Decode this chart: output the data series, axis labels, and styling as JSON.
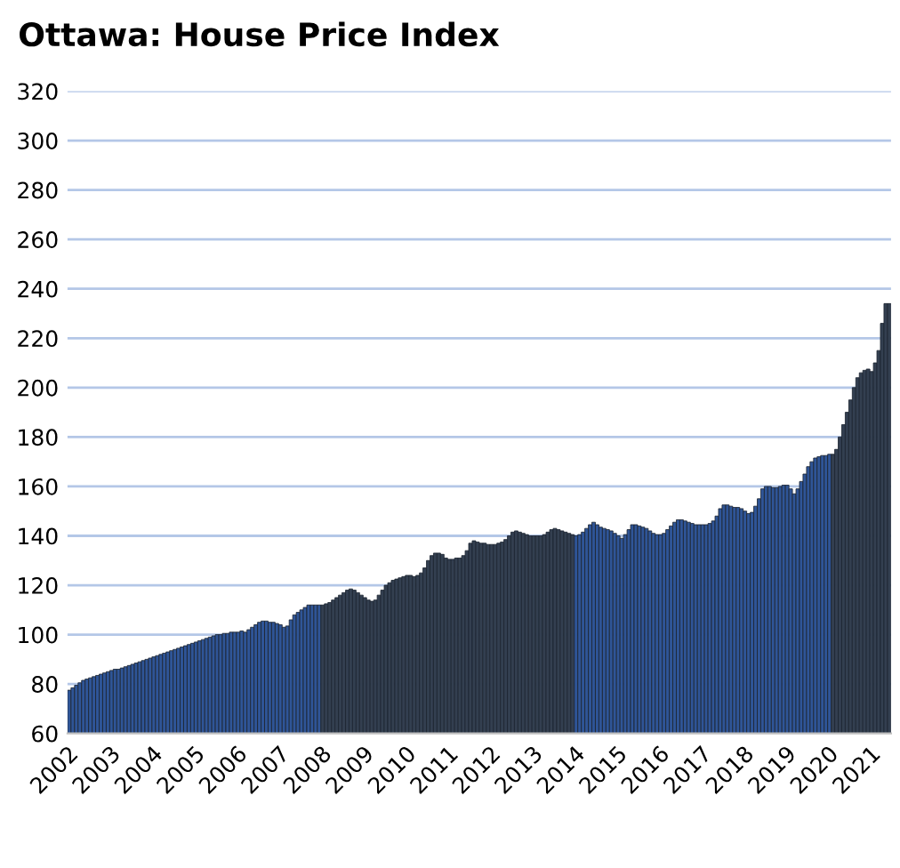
{
  "chart_data": {
    "type": "bar",
    "title": "Ottawa: House Price Index",
    "categories": [
      "2002",
      null,
      null,
      null,
      null,
      null,
      null,
      null,
      null,
      null,
      null,
      null,
      "2003",
      null,
      null,
      null,
      null,
      null,
      null,
      null,
      null,
      null,
      null,
      null,
      "2004",
      null,
      null,
      null,
      null,
      null,
      null,
      null,
      null,
      null,
      null,
      null,
      "2005",
      null,
      null,
      null,
      null,
      null,
      null,
      null,
      null,
      null,
      null,
      null,
      "2006",
      null,
      null,
      null,
      null,
      null,
      null,
      null,
      null,
      null,
      null,
      null,
      "2007",
      null,
      null,
      null,
      null,
      null,
      null,
      null,
      null,
      null,
      null,
      null,
      "2008",
      null,
      null,
      null,
      null,
      null,
      null,
      null,
      null,
      null,
      null,
      null,
      "2009",
      null,
      null,
      null,
      null,
      null,
      null,
      null,
      null,
      null,
      null,
      null,
      "2010",
      null,
      null,
      null,
      null,
      null,
      null,
      null,
      null,
      null,
      null,
      null,
      "2011",
      null,
      null,
      null,
      null,
      null,
      null,
      null,
      null,
      null,
      null,
      null,
      "2012",
      null,
      null,
      null,
      null,
      null,
      null,
      null,
      null,
      null,
      null,
      null,
      "2013",
      null,
      null,
      null,
      null,
      null,
      null,
      null,
      null,
      null,
      null,
      null,
      "2014",
      null,
      null,
      null,
      null,
      null,
      null,
      null,
      null,
      null,
      null,
      null,
      "2015",
      null,
      null,
      null,
      null,
      null,
      null,
      null,
      null,
      null,
      null,
      null,
      "2016",
      null,
      null,
      null,
      null,
      null,
      null,
      null,
      null,
      null,
      null,
      null,
      "2017",
      null,
      null,
      null,
      null,
      null,
      null,
      null,
      null,
      null,
      null,
      null,
      "2018",
      null,
      null,
      null,
      null,
      null,
      null,
      null,
      null,
      null,
      null,
      null,
      "2019",
      null,
      null,
      null,
      null,
      null,
      null,
      null,
      null,
      null,
      null,
      null,
      "2020",
      null,
      null,
      null,
      null,
      null,
      null,
      null,
      null,
      null,
      null,
      null,
      "2021",
      null,
      null,
      null,
      null,
      null
    ],
    "values": [
      77.5,
      78.5,
      79.5,
      80.5,
      81.5,
      82,
      82.5,
      83,
      83.5,
      84,
      84.5,
      85,
      85.5,
      86,
      86,
      86.5,
      87,
      87.5,
      88,
      88.5,
      89,
      89.5,
      90,
      90.5,
      91,
      91.5,
      92,
      92.5,
      93,
      93.5,
      94,
      94.5,
      95,
      95.5,
      96,
      96.5,
      97,
      97.5,
      98,
      98.5,
      99,
      99.5,
      100,
      100,
      100.5,
      100.5,
      101,
      101,
      101,
      101.5,
      101,
      102,
      103,
      104,
      105,
      105.5,
      105.5,
      105,
      105,
      104.5,
      104,
      103,
      103.5,
      106,
      108,
      109,
      110,
      111,
      112,
      112,
      112,
      112,
      112,
      112.5,
      113,
      114,
      115,
      116,
      117,
      118,
      118.5,
      118,
      117,
      116,
      115,
      114,
      113.5,
      114,
      116,
      118,
      120,
      121,
      122,
      122.5,
      123,
      123.5,
      124,
      124,
      123.5,
      124,
      125,
      127,
      130,
      132,
      133,
      133,
      132.5,
      131,
      130.5,
      130.5,
      131,
      131,
      132,
      134,
      137,
      138,
      137.5,
      137,
      137,
      136.5,
      136.5,
      136.5,
      137,
      137.5,
      138.5,
      140,
      141.5,
      142,
      141.5,
      141,
      140.5,
      140,
      140,
      140,
      140,
      140.5,
      141.5,
      142.5,
      143,
      142.5,
      142,
      141.5,
      141,
      140.5,
      140,
      140.5,
      141.5,
      143,
      144.5,
      145.5,
      144.5,
      143.5,
      143,
      142.5,
      142,
      141,
      140,
      139,
      140.5,
      142.5,
      144.5,
      144.5,
      144,
      143.5,
      143,
      142,
      141,
      140.5,
      140.5,
      141,
      142.5,
      144,
      145.5,
      146.5,
      146.5,
      146,
      145.5,
      145,
      144.5,
      144.5,
      144.5,
      144.5,
      145,
      146,
      148,
      151,
      152.5,
      152.5,
      152,
      151.5,
      151.5,
      151,
      150,
      149,
      149.5,
      152,
      155,
      159,
      160,
      160,
      159.5,
      159.5,
      160,
      160.5,
      160.5,
      159,
      157,
      159,
      162,
      165,
      168,
      170,
      171.5,
      172,
      172.5,
      172.5,
      173,
      173,
      175,
      180,
      185,
      190,
      195,
      200,
      204,
      206,
      207,
      207.5,
      206.5,
      210,
      215,
      226,
      234,
      234
    ],
    "colors": [
      "#2f5597",
      "#2f5597",
      "#2f5597",
      "#2f5597",
      "#2f5597",
      "#2f5597",
      "#2f5597",
      "#2f5597",
      "#2f5597",
      "#2f5597",
      "#2f5597",
      "#2f5597",
      "#2f5597",
      "#2f5597",
      "#2f5597",
      "#2f5597",
      "#2f5597",
      "#2f5597",
      "#2f5597",
      "#2f5597",
      "#2f5597",
      "#2f5597",
      "#2f5597",
      "#2f5597",
      "#2f5597",
      "#2f5597",
      "#2f5597",
      "#2f5597",
      "#2f5597",
      "#2f5597",
      "#2f5597",
      "#2f5597",
      "#2f5597",
      "#2f5597",
      "#2f5597",
      "#2f5597",
      "#2f5597",
      "#2f5597",
      "#2f5597",
      "#2f5597",
      "#2f5597",
      "#2f5597",
      "#2f5597",
      "#2f5597",
      "#2f5597",
      "#2f5597",
      "#2f5597",
      "#2f5597",
      "#2f5597",
      "#2f5597",
      "#2f5597",
      "#2f5597",
      "#2f5597",
      "#2f5597",
      "#2f5597",
      "#2f5597",
      "#2f5597",
      "#2f5597",
      "#2f5597",
      "#2f5597",
      "#2f5597",
      "#2f5597",
      "#2f5597",
      "#2f5597",
      "#2f5597",
      "#2f5597",
      "#2f5597",
      "#2f5597",
      "#2f5597",
      "#2f5597",
      "#2f5597",
      "#2f5597",
      "#333f50",
      "#333f50",
      "#333f50",
      "#333f50",
      "#333f50",
      "#333f50",
      "#333f50",
      "#333f50",
      "#333f50",
      "#333f50",
      "#333f50",
      "#333f50",
      "#333f50",
      "#333f50",
      "#333f50",
      "#333f50",
      "#333f50",
      "#333f50",
      "#333f50",
      "#333f50",
      "#333f50",
      "#333f50",
      "#333f50",
      "#333f50",
      "#333f50",
      "#333f50",
      "#333f50",
      "#333f50",
      "#333f50",
      "#333f50",
      "#333f50",
      "#333f50",
      "#333f50",
      "#333f50",
      "#333f50",
      "#333f50",
      "#333f50",
      "#333f50",
      "#333f50",
      "#333f50",
      "#333f50",
      "#333f50",
      "#333f50",
      "#333f50",
      "#333f50",
      "#333f50",
      "#333f50",
      "#333f50",
      "#333f50",
      "#333f50",
      "#333f50",
      "#333f50",
      "#333f50",
      "#333f50",
      "#333f50",
      "#333f50",
      "#333f50",
      "#333f50",
      "#333f50",
      "#333f50",
      "#333f50",
      "#333f50",
      "#333f50",
      "#333f50",
      "#333f50",
      "#333f50",
      "#333f50",
      "#333f50",
      "#333f50",
      "#333f50",
      "#333f50",
      "#333f50",
      "#2f5597",
      "#2f5597",
      "#2f5597",
      "#2f5597",
      "#2f5597",
      "#2f5597",
      "#2f5597",
      "#2f5597",
      "#2f5597",
      "#2f5597",
      "#2f5597",
      "#2f5597",
      "#2f5597",
      "#2f5597",
      "#2f5597",
      "#2f5597",
      "#2f5597",
      "#2f5597",
      "#2f5597",
      "#2f5597",
      "#2f5597",
      "#2f5597",
      "#2f5597",
      "#2f5597",
      "#2f5597",
      "#2f5597",
      "#2f5597",
      "#2f5597",
      "#2f5597",
      "#2f5597",
      "#2f5597",
      "#2f5597",
      "#2f5597",
      "#2f5597",
      "#2f5597",
      "#2f5597",
      "#2f5597",
      "#2f5597",
      "#2f5597",
      "#2f5597",
      "#2f5597",
      "#2f5597",
      "#2f5597",
      "#2f5597",
      "#2f5597",
      "#2f5597",
      "#2f5597",
      "#2f5597",
      "#2f5597",
      "#2f5597",
      "#2f5597",
      "#2f5597",
      "#2f5597",
      "#2f5597",
      "#2f5597",
      "#2f5597",
      "#2f5597",
      "#2f5597",
      "#2f5597",
      "#2f5597",
      "#2f5597",
      "#2f5597",
      "#2f5597",
      "#2f5597",
      "#2f5597",
      "#2f5597",
      "#2f5597",
      "#2f5597",
      "#2f5597",
      "#2f5597",
      "#2f5597",
      "#2f5597",
      "#2f5597",
      "#333f50",
      "#333f50",
      "#333f50",
      "#333f50",
      "#333f50",
      "#333f50",
      "#333f50",
      "#333f50",
      "#333f50",
      "#333f50",
      "#333f50",
      "#333f50",
      "#333f50",
      "#333f50",
      "#333f50",
      "#333f50",
      "#333f50"
    ],
    "ylim": [
      60,
      320
    ],
    "yticks": [
      60,
      80,
      100,
      120,
      140,
      160,
      180,
      200,
      220,
      240,
      260,
      280,
      300,
      320
    ],
    "grid": "y"
  }
}
